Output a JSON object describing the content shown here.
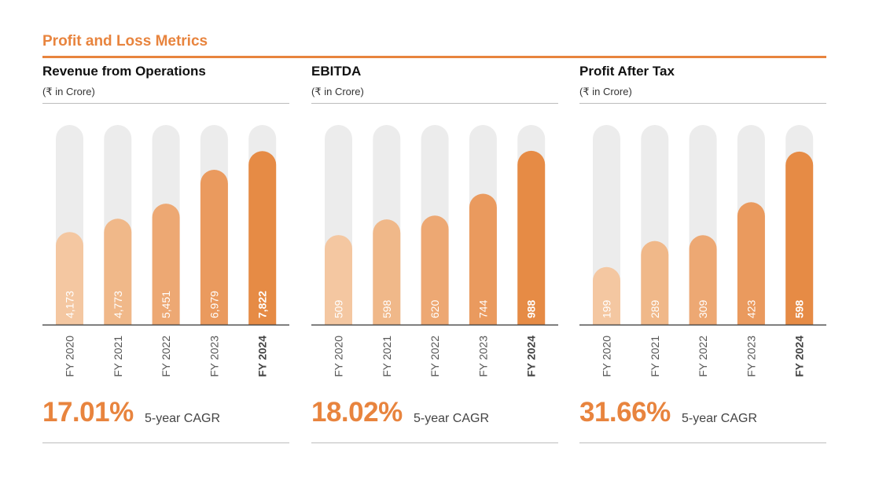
{
  "section": {
    "title": "Profit and Loss Metrics"
  },
  "colors": {
    "accent": "#e8843e",
    "track": "#ececec",
    "bars": [
      "#f4c7a1",
      "#f0b889",
      "#eda873",
      "#ea9a5e",
      "#e68b45"
    ]
  },
  "chart_data": [
    {
      "type": "bar",
      "title": "Revenue from Operations",
      "unit": "(₹ in Crore)",
      "categories": [
        "FY 2020",
        "FY 2021",
        "FY 2022",
        "FY 2023",
        "FY 2024"
      ],
      "values": [
        4173,
        4773,
        5451,
        6979,
        7822
      ],
      "labels": [
        "4,173",
        "4,773",
        "5,451",
        "6,979",
        "7,822"
      ],
      "ylim": [
        0,
        9000
      ],
      "cagr": {
        "value": "17.01%",
        "label": "5-year CAGR"
      }
    },
    {
      "type": "bar",
      "title": "EBITDA",
      "unit": "(₹ in Crore)",
      "categories": [
        "FY 2020",
        "FY 2021",
        "FY 2022",
        "FY 2023",
        "FY 2024"
      ],
      "values": [
        509,
        598,
        620,
        744,
        988
      ],
      "labels": [
        "509",
        "598",
        "620",
        "744",
        "988"
      ],
      "ylim": [
        0,
        1135
      ],
      "cagr": {
        "value": "18.02%",
        "label": "5-year CAGR"
      }
    },
    {
      "type": "bar",
      "title": "Profit After Tax",
      "unit": "(₹ in Crore)",
      "categories": [
        "FY 2020",
        "FY 2021",
        "FY 2022",
        "FY 2023",
        "FY 2024"
      ],
      "values": [
        199,
        289,
        309,
        423,
        598
      ],
      "labels": [
        "199",
        "289",
        "309",
        "423",
        "598"
      ],
      "ylim": [
        0,
        690
      ],
      "cagr": {
        "value": "31.66%",
        "label": "5-year CAGR"
      }
    }
  ]
}
